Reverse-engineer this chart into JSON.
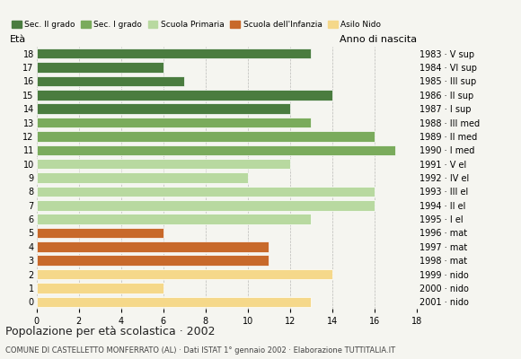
{
  "ages": [
    18,
    17,
    16,
    15,
    14,
    13,
    12,
    11,
    10,
    9,
    8,
    7,
    6,
    5,
    4,
    3,
    2,
    1,
    0
  ],
  "values": [
    13,
    6,
    7,
    14,
    12,
    13,
    16,
    17,
    12,
    10,
    16,
    16,
    13,
    6,
    11,
    11,
    14,
    6,
    13
  ],
  "categories": [
    "Sec. II grado",
    "Sec. II grado",
    "Sec. II grado",
    "Sec. II grado",
    "Sec. II grado",
    "Sec. I grado",
    "Sec. I grado",
    "Sec. I grado",
    "Scuola Primaria",
    "Scuola Primaria",
    "Scuola Primaria",
    "Scuola Primaria",
    "Scuola Primaria",
    "Scuola dell'Infanzia",
    "Scuola dell'Infanzia",
    "Scuola dell'Infanzia",
    "Asilo Nido",
    "Asilo Nido",
    "Asilo Nido"
  ],
  "right_labels_by_age": {
    "18": "1983 · V sup",
    "17": "1984 · VI sup",
    "16": "1985 · III sup",
    "15": "1986 · II sup",
    "14": "1987 · I sup",
    "13": "1988 · III med",
    "12": "1989 · II med",
    "11": "1990 · I med",
    "10": "1991 · V el",
    "9": "1992 · IV el",
    "8": "1993 · III el",
    "7": "1994 · II el",
    "6": "1995 · I el",
    "5": "1996 · mat",
    "4": "1997 · mat",
    "3": "1998 · mat",
    "2": "1999 · nido",
    "1": "2000 · nido",
    "0": "2001 · nido"
  },
  "colors": {
    "Sec. II grado": "#4a7c3f",
    "Sec. I grado": "#7aab5c",
    "Scuola Primaria": "#b8d9a0",
    "Scuola dell'Infanzia": "#c8692a",
    "Asilo Nido": "#f5d88a"
  },
  "legend_order": [
    "Sec. II grado",
    "Sec. I grado",
    "Scuola Primaria",
    "Scuola dell'Infanzia",
    "Asilo Nido"
  ],
  "title": "Popolazione per età scolastica · 2002",
  "subtitle": "COMUNE DI CASTELLETTO MONFERRATO (AL) · Dati ISTAT 1° gennaio 2002 · Elaborazione TUTTITALIA.IT",
  "eta_label": "Età",
  "anno_label": "Anno di nascita",
  "background_color": "#f5f5f0"
}
